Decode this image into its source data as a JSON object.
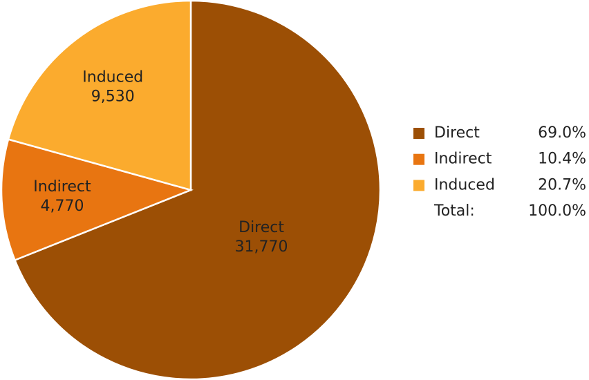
{
  "chart_data": {
    "type": "pie",
    "categories": [
      "Direct",
      "Indirect",
      "Induced"
    ],
    "values": [
      31770,
      4770,
      9530
    ],
    "value_labels": [
      "31,770",
      "4,770",
      "9,530"
    ],
    "colors": [
      "#9c4f05",
      "#e87511",
      "#fbab2e"
    ],
    "legend_values": [
      "69.0%",
      "10.4%",
      "20.7%"
    ],
    "total_label": "Total:",
    "total_value_label": "100.0%",
    "legend": "right"
  }
}
